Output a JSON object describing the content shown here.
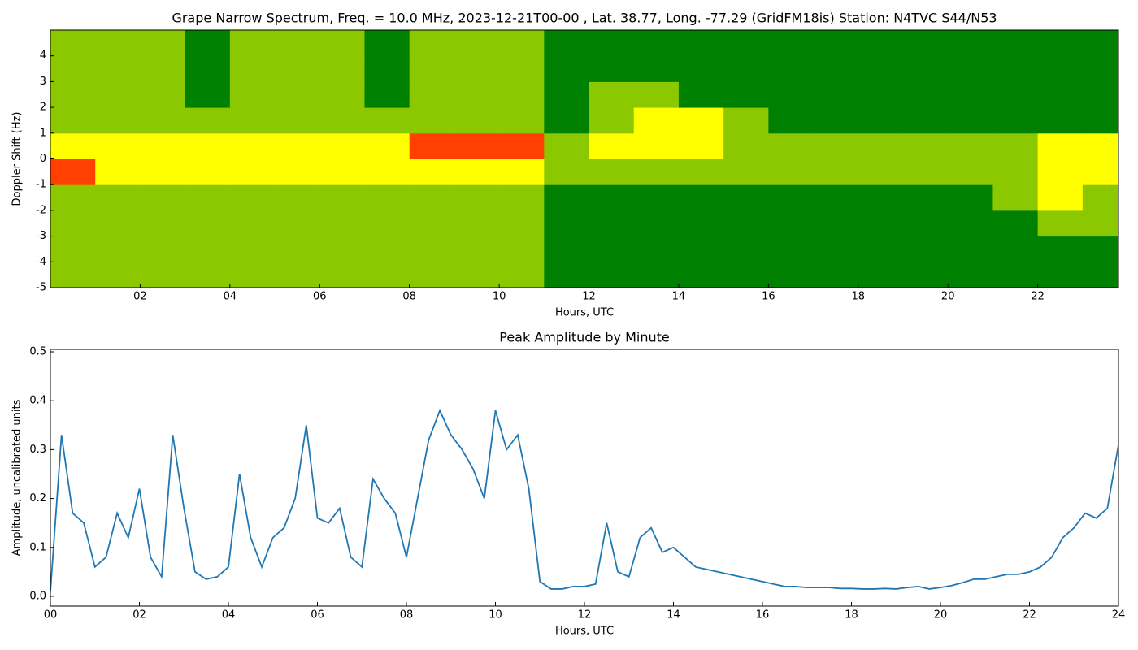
{
  "chart_data": [
    {
      "type": "heatmap",
      "title": "Grape Narrow Spectrum, Freq. = 10.0 MHz, 2023-12-21T00-00 , Lat.  38.77, Long. -77.29 (GridFM18is) Station: N4TVC S44/N53",
      "x_label": "Hours, UTC",
      "y_label": "Doppler Shift (Hz)",
      "xlim": [
        0,
        23.8
      ],
      "ylim": [
        -5,
        5
      ],
      "xticks": [
        {
          "value": 2,
          "label": "02"
        },
        {
          "value": 4,
          "label": "04"
        },
        {
          "value": 6,
          "label": "06"
        },
        {
          "value": 8,
          "label": "08"
        },
        {
          "value": 10,
          "label": "10"
        },
        {
          "value": 12,
          "label": "12"
        },
        {
          "value": 14,
          "label": "14"
        },
        {
          "value": 16,
          "label": "16"
        },
        {
          "value": 18,
          "label": "18"
        },
        {
          "value": 20,
          "label": "20"
        },
        {
          "value": 22,
          "label": "22"
        }
      ],
      "yticks": [
        -5,
        -4,
        -3,
        -2,
        -1,
        0,
        1,
        2,
        3,
        4
      ],
      "colors": [
        "#008000",
        "#8cc800",
        "#ffff00",
        "#ff4000"
      ],
      "xbins": [
        0,
        1,
        2,
        3,
        4,
        5,
        6,
        7,
        8,
        9,
        10,
        11,
        12,
        13,
        14,
        15,
        16,
        17,
        18,
        19,
        20,
        21,
        22,
        23,
        24
      ],
      "ybins": [
        -5,
        -4,
        -3,
        -2,
        -1,
        0,
        1,
        2,
        3,
        4,
        5
      ],
      "z": [
        [
          1,
          1,
          1,
          1,
          1,
          1,
          1,
          1,
          1,
          1,
          1,
          0,
          0,
          0,
          0,
          0,
          0,
          0,
          0,
          0,
          0,
          0,
          0,
          0
        ],
        [
          1,
          1,
          1,
          1,
          1,
          1,
          1,
          1,
          1,
          1,
          1,
          0,
          0,
          0,
          0,
          0,
          0,
          0,
          0,
          0,
          0,
          0,
          0,
          0
        ],
        [
          1,
          1,
          1,
          1,
          1,
          1,
          1,
          1,
          1,
          1,
          1,
          0,
          0,
          0,
          0,
          0,
          0,
          0,
          0,
          0,
          0,
          0,
          1,
          1
        ],
        [
          1,
          1,
          1,
          1,
          1,
          1,
          1,
          1,
          1,
          1,
          1,
          0,
          0,
          0,
          0,
          0,
          0,
          0,
          0,
          0,
          0,
          1,
          2,
          1
        ],
        [
          3,
          2,
          2,
          2,
          2,
          2,
          2,
          2,
          2,
          2,
          2,
          1,
          1,
          1,
          1,
          1,
          1,
          1,
          1,
          1,
          1,
          1,
          2,
          2
        ],
        [
          2,
          2,
          2,
          2,
          2,
          2,
          2,
          2,
          3,
          3,
          3,
          1,
          2,
          2,
          2,
          1,
          1,
          1,
          1,
          1,
          1,
          1,
          2,
          2
        ],
        [
          1,
          1,
          1,
          1,
          1,
          1,
          1,
          1,
          1,
          1,
          1,
          0,
          1,
          2,
          2,
          1,
          0,
          0,
          0,
          0,
          0,
          0,
          0,
          0
        ],
        [
          1,
          1,
          1,
          0,
          1,
          1,
          1,
          0,
          1,
          1,
          1,
          0,
          1,
          1,
          0,
          0,
          0,
          0,
          0,
          0,
          0,
          0,
          0,
          0
        ],
        [
          1,
          1,
          1,
          0,
          1,
          1,
          1,
          0,
          1,
          1,
          1,
          0,
          0,
          0,
          0,
          0,
          0,
          0,
          0,
          0,
          0,
          0,
          0,
          0
        ],
        [
          1,
          1,
          1,
          0,
          1,
          1,
          1,
          0,
          1,
          1,
          1,
          0,
          0,
          0,
          0,
          0,
          0,
          0,
          0,
          0,
          0,
          0,
          0,
          0
        ]
      ]
    },
    {
      "type": "line",
      "title": "Peak Amplitude by Minute",
      "x_label": "Hours, UTC",
      "y_label": "Amplitude, uncalibrated units",
      "xlim": [
        0,
        24
      ],
      "ylim": [
        -0.02,
        0.505
      ],
      "xticks": [
        {
          "value": 0,
          "label": "00"
        },
        {
          "value": 2,
          "label": "02"
        },
        {
          "value": 4,
          "label": "04"
        },
        {
          "value": 6,
          "label": "06"
        },
        {
          "value": 8,
          "label": "08"
        },
        {
          "value": 10,
          "label": "10"
        },
        {
          "value": 12,
          "label": "12"
        },
        {
          "value": 14,
          "label": "14"
        },
        {
          "value": 16,
          "label": "16"
        },
        {
          "value": 18,
          "label": "18"
        },
        {
          "value": 20,
          "label": "20"
        },
        {
          "value": 22,
          "label": "22"
        },
        {
          "value": 24,
          "label": "24"
        }
      ],
      "yticks": [
        {
          "value": 0,
          "label": "0.0"
        },
        {
          "value": 0.1,
          "label": "0.1"
        },
        {
          "value": 0.2,
          "label": "0.2"
        },
        {
          "value": 0.3,
          "label": "0.3"
        },
        {
          "value": 0.4,
          "label": "0.4"
        },
        {
          "value": 0.5,
          "label": "0.5"
        }
      ],
      "x": [
        0,
        0.25,
        0.5,
        0.75,
        1,
        1.25,
        1.5,
        1.75,
        2,
        2.25,
        2.5,
        2.75,
        3,
        3.25,
        3.5,
        3.75,
        4,
        4.25,
        4.5,
        4.75,
        5,
        5.25,
        5.5,
        5.75,
        6,
        6.25,
        6.5,
        6.75,
        7,
        7.25,
        7.5,
        7.75,
        8,
        8.25,
        8.5,
        8.75,
        9,
        9.25,
        9.5,
        9.75,
        10,
        10.25,
        10.5,
        10.75,
        11,
        11.25,
        11.5,
        11.75,
        12,
        12.25,
        12.5,
        12.75,
        13,
        13.25,
        13.5,
        13.75,
        14,
        14.25,
        14.5,
        14.75,
        15,
        15.25,
        15.5,
        15.75,
        16,
        16.25,
        16.5,
        16.75,
        17,
        17.25,
        17.5,
        17.75,
        18,
        18.25,
        18.5,
        18.75,
        19,
        19.25,
        19.5,
        19.75,
        20,
        20.25,
        20.5,
        20.75,
        21,
        21.25,
        21.5,
        21.75,
        22,
        22.25,
        22.5,
        22.75,
        23,
        23.25,
        23.5,
        23.75,
        24
      ],
      "series": [
        {
          "color": "#1f77b4",
          "values": [
            0.01,
            0.33,
            0.17,
            0.15,
            0.06,
            0.08,
            0.17,
            0.12,
            0.22,
            0.08,
            0.04,
            0.33,
            0.18,
            0.05,
            0.035,
            0.04,
            0.06,
            0.25,
            0.12,
            0.06,
            0.12,
            0.14,
            0.2,
            0.35,
            0.16,
            0.15,
            0.18,
            0.08,
            0.06,
            0.24,
            0.2,
            0.17,
            0.08,
            0.2,
            0.32,
            0.38,
            0.33,
            0.3,
            0.26,
            0.2,
            0.38,
            0.3,
            0.33,
            0.22,
            0.03,
            0.015,
            0.015,
            0.02,
            0.02,
            0.025,
            0.15,
            0.05,
            0.04,
            0.12,
            0.14,
            0.09,
            0.1,
            0.08,
            0.06,
            0.055,
            0.05,
            0.045,
            0.04,
            0.035,
            0.03,
            0.025,
            0.02,
            0.02,
            0.018,
            0.018,
            0.018,
            0.016,
            0.016,
            0.015,
            0.015,
            0.016,
            0.015,
            0.018,
            0.02,
            0.015,
            0.018,
            0.022,
            0.028,
            0.035,
            0.035,
            0.04,
            0.045,
            0.045,
            0.05,
            0.06,
            0.08,
            0.12,
            0.14,
            0.17,
            0.16,
            0.18,
            0.31
          ]
        }
      ]
    }
  ]
}
